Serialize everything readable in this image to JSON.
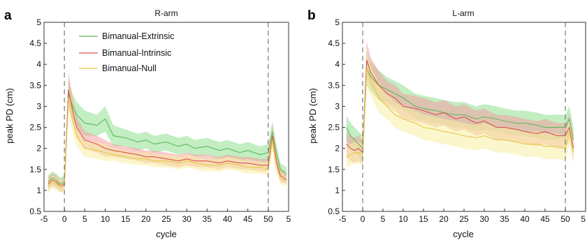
{
  "chart_data": [
    {
      "type": "line",
      "panel_letter": "a",
      "title": "R-arm",
      "xlabel": "cycle",
      "ylabel": "peak PD (cm)",
      "ylim": [
        0.5,
        5
      ],
      "yticks": [
        "0.5",
        "1",
        "1.5",
        "2",
        "2.5",
        "3",
        "3.5",
        "4",
        "4.5",
        "5"
      ],
      "xticks": [
        "-5",
        "0",
        "5",
        "10",
        "15",
        "20",
        "25",
        "30",
        "35",
        "40",
        "45",
        "50",
        "5"
      ],
      "vlines_at_cycle": [
        0,
        50
      ],
      "legend": [
        "Bimanual-Extrinsic",
        "Bimanual-Intrinsic",
        "Bimanual-Null"
      ],
      "legend_position": "top-left",
      "series": [
        {
          "name": "Bimanual-Extrinsic",
          "color": "#5cb85c",
          "band_color": "#8fe08f",
          "x": [
            -4,
            -3,
            -2,
            -1,
            0,
            1,
            2,
            3,
            5,
            8,
            10,
            12,
            15,
            18,
            20,
            22,
            25,
            28,
            30,
            32,
            35,
            38,
            40,
            43,
            45,
            48,
            50,
            51,
            52,
            53,
            54.5
          ],
          "y": [
            1.2,
            1.3,
            1.25,
            1.15,
            1.2,
            3.3,
            3.0,
            2.8,
            2.6,
            2.55,
            2.7,
            2.3,
            2.25,
            2.15,
            2.2,
            2.1,
            2.15,
            2.05,
            2.1,
            2.0,
            2.05,
            1.95,
            2.0,
            1.9,
            1.95,
            1.85,
            1.9,
            2.4,
            1.9,
            1.5,
            1.4
          ],
          "err": [
            0.15,
            0.15,
            0.15,
            0.15,
            0.15,
            0.35,
            0.3,
            0.3,
            0.3,
            0.25,
            0.3,
            0.25,
            0.2,
            0.2,
            0.2,
            0.2,
            0.2,
            0.2,
            0.2,
            0.2,
            0.2,
            0.2,
            0.2,
            0.2,
            0.2,
            0.2,
            0.2,
            0.25,
            0.2,
            0.15,
            0.15
          ]
        },
        {
          "name": "Bimanual-Intrinsic",
          "color": "#d9534f",
          "band_color": "#f4a0a0",
          "x": [
            -4,
            -3,
            -2,
            -1,
            0,
            1,
            2,
            3,
            5,
            8,
            10,
            12,
            15,
            18,
            20,
            22,
            25,
            28,
            30,
            32,
            35,
            38,
            40,
            43,
            45,
            48,
            50,
            51,
            52,
            53,
            54.5
          ],
          "y": [
            1.15,
            1.25,
            1.2,
            1.1,
            1.15,
            3.4,
            2.9,
            2.5,
            2.2,
            2.1,
            2.0,
            1.95,
            1.9,
            1.85,
            1.8,
            1.8,
            1.75,
            1.7,
            1.75,
            1.7,
            1.7,
            1.65,
            1.7,
            1.65,
            1.65,
            1.6,
            1.6,
            2.3,
            1.7,
            1.35,
            1.25
          ],
          "err": [
            0.15,
            0.15,
            0.15,
            0.15,
            0.15,
            0.4,
            0.3,
            0.25,
            0.2,
            0.2,
            0.2,
            0.15,
            0.15,
            0.15,
            0.15,
            0.15,
            0.15,
            0.15,
            0.15,
            0.15,
            0.15,
            0.15,
            0.15,
            0.15,
            0.15,
            0.15,
            0.15,
            0.25,
            0.2,
            0.15,
            0.1
          ]
        },
        {
          "name": "Bimanual-Null",
          "color": "#e6c84a",
          "band_color": "#f7eea0",
          "x": [
            -4,
            -3,
            -2,
            -1,
            0,
            1,
            2,
            3,
            5,
            8,
            10,
            12,
            15,
            18,
            20,
            22,
            25,
            28,
            30,
            32,
            35,
            38,
            40,
            43,
            45,
            48,
            50,
            51,
            52,
            53,
            54.5
          ],
          "y": [
            1.1,
            1.2,
            1.15,
            1.1,
            1.1,
            3.2,
            2.7,
            2.3,
            2.0,
            1.95,
            1.9,
            1.85,
            1.8,
            1.75,
            1.75,
            1.7,
            1.7,
            1.65,
            1.7,
            1.65,
            1.6,
            1.6,
            1.65,
            1.6,
            1.55,
            1.55,
            1.5,
            2.2,
            1.6,
            1.3,
            1.2
          ],
          "err": [
            0.15,
            0.15,
            0.15,
            0.15,
            0.15,
            0.35,
            0.3,
            0.25,
            0.2,
            0.2,
            0.2,
            0.15,
            0.15,
            0.15,
            0.15,
            0.15,
            0.15,
            0.15,
            0.15,
            0.15,
            0.15,
            0.15,
            0.15,
            0.15,
            0.15,
            0.15,
            0.15,
            0.25,
            0.2,
            0.15,
            0.1
          ]
        }
      ]
    },
    {
      "type": "line",
      "panel_letter": "b",
      "title": "L-arm",
      "xlabel": "cycle",
      "ylabel": "peak PD (cm)",
      "ylim": [
        0.5,
        5
      ],
      "yticks": [
        "0.5",
        "1",
        "1.5",
        "2",
        "2.5",
        "3",
        "3.5",
        "4",
        "4.5",
        "5"
      ],
      "xticks": [
        "-5",
        "0",
        "5",
        "10",
        "15",
        "20",
        "25",
        "30",
        "35",
        "40",
        "45",
        "50",
        "5"
      ],
      "vlines_at_cycle": [
        0,
        50
      ],
      "series": [
        {
          "name": "Bimanual-Extrinsic",
          "color": "#5cb85c",
          "band_color": "#8fe08f",
          "x": [
            -4,
            -3,
            -2,
            -1,
            0,
            1,
            2,
            4,
            6,
            8,
            10,
            13,
            15,
            18,
            20,
            23,
            25,
            28,
            30,
            33,
            35,
            38,
            40,
            43,
            45,
            48,
            50,
            51,
            52
          ],
          "y": [
            2.5,
            2.3,
            2.2,
            2.1,
            2.0,
            3.9,
            3.7,
            3.5,
            3.4,
            3.3,
            3.2,
            3.0,
            2.95,
            2.9,
            2.85,
            2.8,
            2.8,
            2.7,
            2.75,
            2.7,
            2.65,
            2.6,
            2.6,
            2.55,
            2.5,
            2.5,
            2.5,
            2.7,
            2.2
          ],
          "err": [
            0.3,
            0.3,
            0.3,
            0.3,
            0.3,
            0.4,
            0.35,
            0.35,
            0.3,
            0.3,
            0.3,
            0.3,
            0.3,
            0.3,
            0.3,
            0.3,
            0.3,
            0.3,
            0.3,
            0.3,
            0.3,
            0.3,
            0.3,
            0.3,
            0.3,
            0.3,
            0.3,
            0.3,
            0.3
          ]
        },
        {
          "name": "Bimanual-Intrinsic",
          "color": "#d9534f",
          "band_color": "#f4a0a0",
          "x": [
            -4,
            -3,
            -2,
            -1,
            0,
            1,
            2,
            4,
            6,
            8,
            10,
            13,
            15,
            18,
            20,
            23,
            25,
            28,
            30,
            33,
            35,
            38,
            40,
            43,
            45,
            48,
            50,
            51,
            52
          ],
          "y": [
            2.1,
            2.0,
            1.95,
            2.0,
            1.9,
            4.1,
            3.8,
            3.5,
            3.3,
            3.2,
            3.0,
            2.95,
            2.9,
            2.8,
            2.85,
            2.7,
            2.75,
            2.6,
            2.65,
            2.5,
            2.5,
            2.45,
            2.4,
            2.35,
            2.4,
            2.3,
            2.3,
            2.5,
            2.0
          ],
          "err": [
            0.3,
            0.3,
            0.3,
            0.3,
            0.3,
            0.45,
            0.35,
            0.35,
            0.3,
            0.3,
            0.3,
            0.3,
            0.3,
            0.3,
            0.3,
            0.3,
            0.3,
            0.3,
            0.3,
            0.3,
            0.3,
            0.3,
            0.3,
            0.3,
            0.3,
            0.3,
            0.3,
            0.3,
            0.3
          ]
        },
        {
          "name": "Bimanual-Null",
          "color": "#e6c84a",
          "band_color": "#f7eea0",
          "x": [
            -4,
            -3,
            -2,
            -1,
            0,
            1,
            2,
            4,
            6,
            8,
            10,
            13,
            15,
            18,
            20,
            23,
            25,
            28,
            30,
            33,
            35,
            38,
            40,
            43,
            45,
            48,
            50,
            51,
            52
          ],
          "y": [
            1.8,
            1.85,
            1.9,
            1.9,
            1.85,
            3.9,
            3.6,
            3.2,
            3.0,
            2.8,
            2.7,
            2.6,
            2.5,
            2.45,
            2.4,
            2.35,
            2.3,
            2.25,
            2.3,
            2.2,
            2.2,
            2.15,
            2.1,
            2.1,
            2.05,
            2.05,
            2.0,
            2.4,
            1.9
          ],
          "err": [
            0.25,
            0.25,
            0.25,
            0.25,
            0.25,
            0.4,
            0.35,
            0.35,
            0.3,
            0.3,
            0.3,
            0.3,
            0.3,
            0.3,
            0.3,
            0.3,
            0.3,
            0.3,
            0.3,
            0.3,
            0.3,
            0.3,
            0.3,
            0.3,
            0.3,
            0.3,
            0.3,
            0.3,
            0.3
          ]
        }
      ]
    }
  ]
}
